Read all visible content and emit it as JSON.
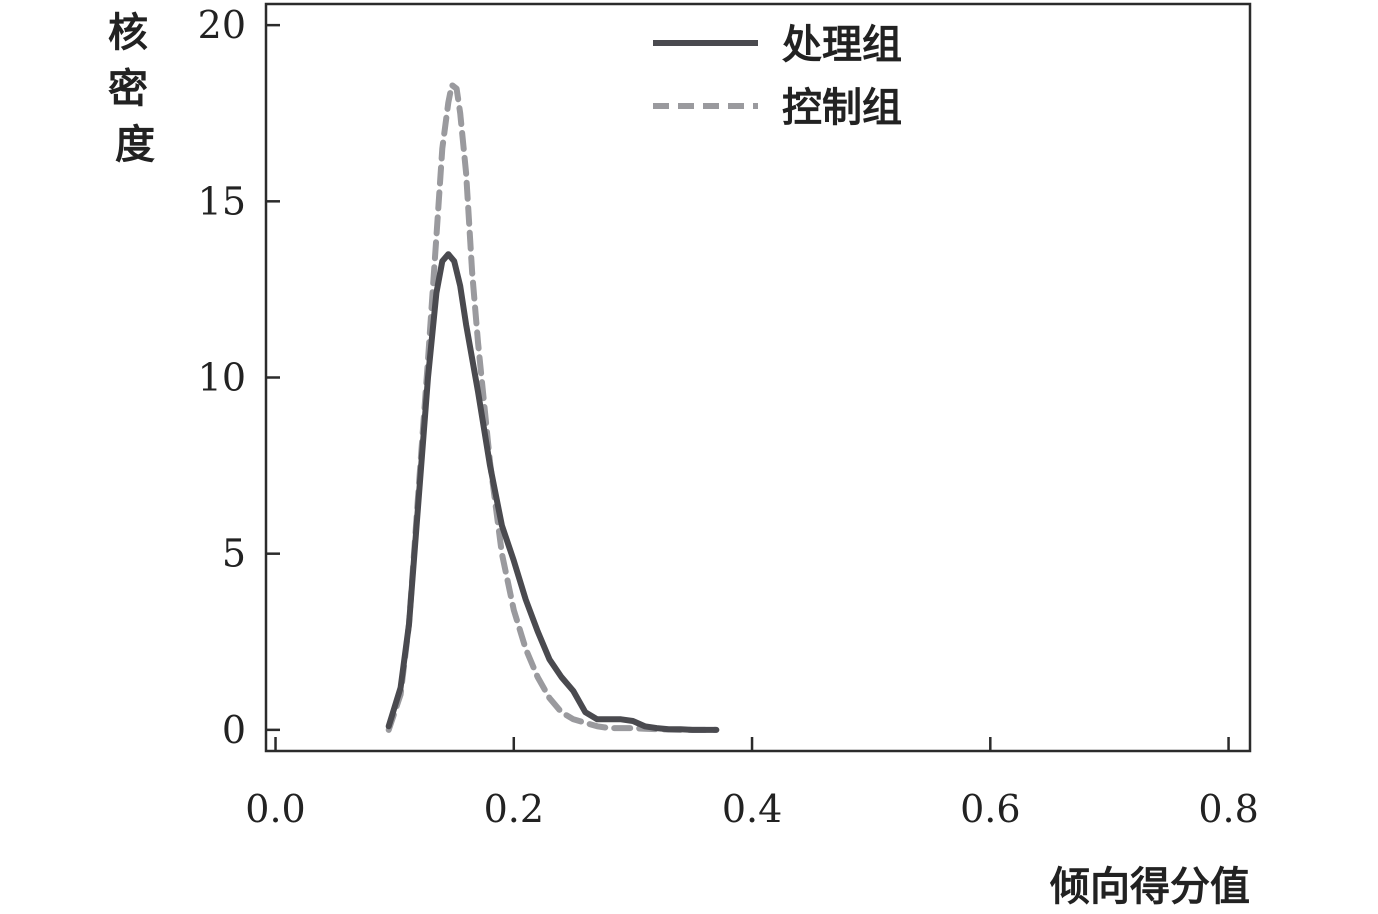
{
  "chart_data": {
    "type": "line",
    "title": "",
    "xlabel": "倾向得分值",
    "ylabel": "核密度",
    "xlim": [
      -0.008,
      0.818
    ],
    "ylim": [
      -0.6,
      20.6
    ],
    "x_ticks": [
      0.0,
      0.2,
      0.4,
      0.6,
      0.8
    ],
    "x_tick_labels": [
      "0.0",
      "0.2",
      "0.4",
      "0.6",
      "0.8"
    ],
    "y_ticks": [
      0,
      5,
      10,
      15,
      20
    ],
    "y_tick_labels": [
      "0",
      "5",
      "10",
      "15",
      "20"
    ],
    "grid": false,
    "legend_position": "top-center",
    "series": [
      {
        "name": "处理组",
        "style": "solid",
        "color": "#4a4a4f",
        "x": [
          0.095,
          0.105,
          0.112,
          0.12,
          0.128,
          0.135,
          0.14,
          0.145,
          0.15,
          0.155,
          0.16,
          0.17,
          0.18,
          0.19,
          0.2,
          0.21,
          0.22,
          0.23,
          0.24,
          0.25,
          0.26,
          0.27,
          0.28,
          0.29,
          0.3,
          0.31,
          0.32,
          0.33,
          0.34,
          0.35,
          0.37
        ],
        "y": [
          0.1,
          1.2,
          3.0,
          6.5,
          10.0,
          12.4,
          13.3,
          13.5,
          13.3,
          12.6,
          11.5,
          9.6,
          7.5,
          5.8,
          4.8,
          3.7,
          2.8,
          2.0,
          1.5,
          1.1,
          0.5,
          0.3,
          0.3,
          0.3,
          0.25,
          0.1,
          0.05,
          0.02,
          0.02,
          0.0,
          0.0
        ]
      },
      {
        "name": "控制组",
        "style": "dashed",
        "color": "#9a9a9e",
        "x": [
          0.095,
          0.105,
          0.112,
          0.12,
          0.128,
          0.135,
          0.14,
          0.145,
          0.148,
          0.152,
          0.155,
          0.16,
          0.165,
          0.17,
          0.18,
          0.19,
          0.2,
          0.21,
          0.22,
          0.23,
          0.24,
          0.25,
          0.26,
          0.27,
          0.28,
          0.29,
          0.3,
          0.31,
          0.32,
          0.33,
          0.34,
          0.35,
          0.37
        ],
        "y": [
          0.0,
          1.0,
          3.0,
          6.8,
          10.5,
          14.0,
          16.5,
          17.8,
          18.3,
          18.2,
          17.5,
          15.8,
          13.0,
          11.0,
          7.6,
          5.0,
          3.4,
          2.3,
          1.5,
          0.9,
          0.5,
          0.3,
          0.2,
          0.1,
          0.05,
          0.05,
          0.05,
          0.03,
          0.02,
          0.01,
          0.0,
          0.0,
          0.0
        ]
      }
    ]
  }
}
